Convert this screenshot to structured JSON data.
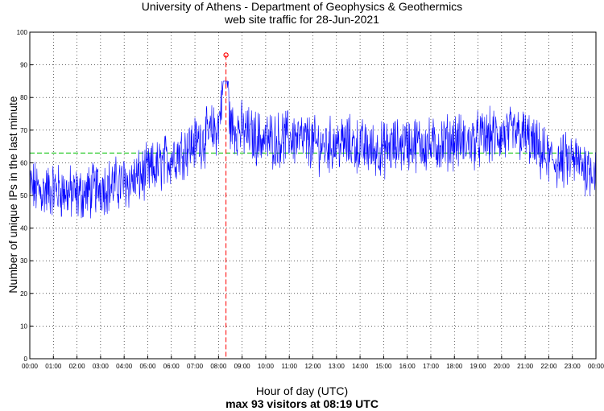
{
  "chart_data": {
    "type": "line",
    "title": "University of Athens - Department of Geophysics & Geothermics",
    "subtitle": "web site traffic for 28-Jun-2021",
    "xlabel": "Hour of day (UTC)",
    "ylabel": "Number of unique IPs in the last minute",
    "annotation": "max 93 visitors at 08:19 UTC",
    "x_ticks": [
      "00:00",
      "01:00",
      "02:00",
      "03:00",
      "04:00",
      "05:00",
      "06:00",
      "07:00",
      "08:00",
      "09:00",
      "10:00",
      "11:00",
      "12:00",
      "13:00",
      "14:00",
      "15:00",
      "16:00",
      "17:00",
      "18:00",
      "19:00",
      "20:00",
      "21:00",
      "22:00",
      "23:00",
      "00:00"
    ],
    "y_ticks": [
      0,
      10,
      20,
      30,
      40,
      50,
      60,
      70,
      80,
      90,
      100
    ],
    "xlim_hours": [
      0,
      24
    ],
    "ylim": [
      0,
      100
    ],
    "grid": true,
    "mean_line": 63,
    "max": {
      "value": 93,
      "time_hours": 8.3167
    },
    "series": [
      {
        "color": "#0000ff",
        "x_hours": [
          0,
          0.5,
          1,
          1.5,
          2,
          2.5,
          3,
          3.5,
          4,
          4.5,
          5,
          5.5,
          6,
          6.5,
          7,
          7.5,
          8,
          8.32,
          8.5,
          9,
          9.5,
          10,
          10.5,
          11,
          11.5,
          12,
          12.5,
          13,
          13.5,
          14,
          14.5,
          15,
          15.5,
          16,
          16.5,
          17,
          17.5,
          18,
          18.5,
          19,
          19.5,
          20,
          20.5,
          21,
          21.5,
          22,
          22.5,
          23,
          23.5,
          24
        ],
        "values": [
          53,
          51,
          52,
          51,
          50,
          51,
          53,
          53,
          54,
          55,
          57,
          59,
          62,
          64,
          66,
          68,
          71,
          93,
          71,
          70,
          68,
          67,
          67,
          68,
          67,
          66,
          65,
          66,
          66,
          65,
          64,
          64,
          65,
          66,
          66,
          65,
          66,
          67,
          66,
          67,
          68,
          68,
          69,
          68,
          64,
          61,
          60,
          61,
          59,
          58
        ]
      }
    ],
    "colors": {
      "series": "#0000ff",
      "mean": "#00c000",
      "max_marker": "#ff0000",
      "grid": "#000000"
    }
  }
}
